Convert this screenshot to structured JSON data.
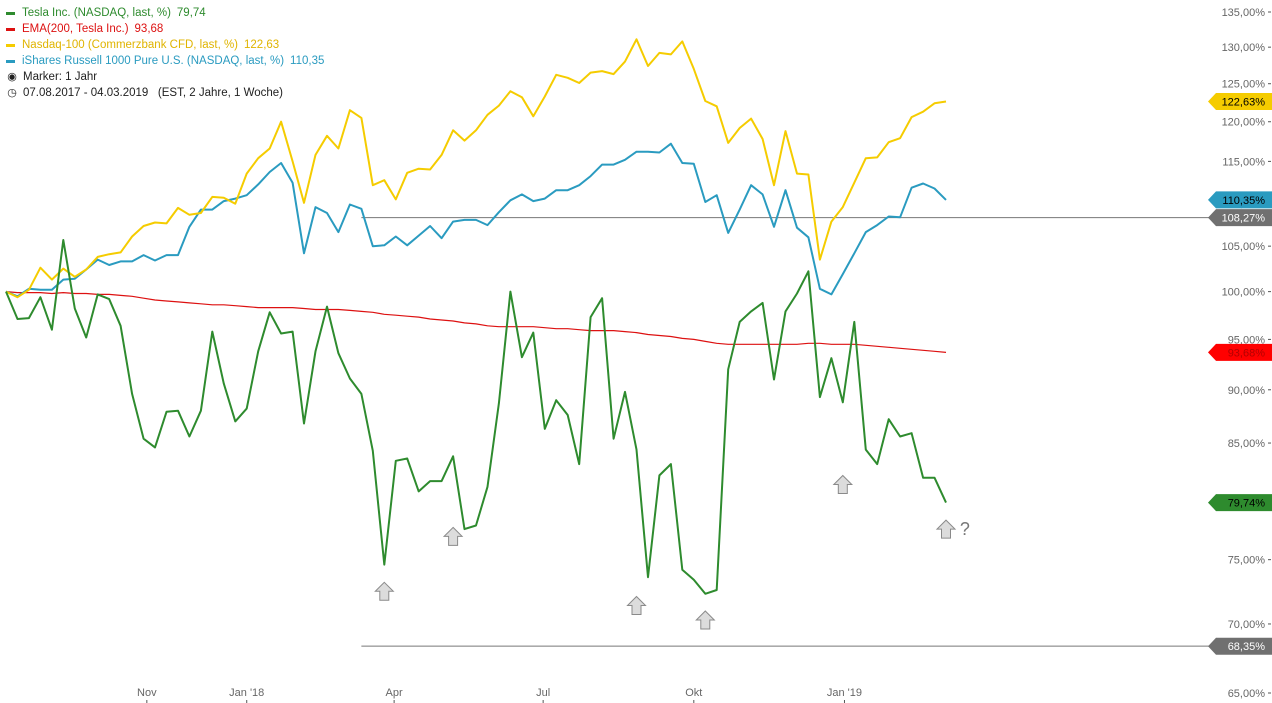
{
  "legend": {
    "items": [
      {
        "label": "Tesla Inc. (NASDAQ, last, %)",
        "value": "79,74",
        "color": "#2e8b2e"
      },
      {
        "label": "EMA(200, Tesla Inc.)",
        "value": "93,68",
        "color": "#dd1111"
      },
      {
        "label": "Nasdaq-100 (Commerzbank CFD, last, %)",
        "value": "122,63",
        "color": "#f5cc00"
      },
      {
        "label": "iShares Russell 1000 Pure U.S. (NASDAQ, last, %)",
        "value": "110,35",
        "color": "#2a9bc0"
      }
    ],
    "marker": "Marker: 1 Jahr",
    "period": "07.08.2017 - 04.03.2019   (EST, 2 Jahre, 1 Woche)"
  },
  "chart_data": {
    "type": "line",
    "x_start": "2017-08-07",
    "x_step_days": 7,
    "xticks": [
      {
        "label": "Nov",
        "date": "2017-11-01"
      },
      {
        "label": "Jan '18",
        "date": "2018-01-01"
      },
      {
        "label": "Apr",
        "date": "2018-04-01"
      },
      {
        "label": "Jul",
        "date": "2018-07-01"
      },
      {
        "label": "Okt",
        "date": "2018-10-01"
      },
      {
        "label": "Jan '19",
        "date": "2019-01-01"
      }
    ],
    "yticks": [
      {
        "label": "135,00%",
        "value": 135
      },
      {
        "label": "130,00%",
        "value": 130
      },
      {
        "label": "125,00%",
        "value": 125
      },
      {
        "label": "120,00%",
        "value": 120
      },
      {
        "label": "115,00%",
        "value": 115
      },
      {
        "label": "110,00%",
        "value": 110
      },
      {
        "label": "105,00%",
        "value": 105
      },
      {
        "label": "100,00%",
        "value": 100
      },
      {
        "label": "95,00%",
        "value": 95
      },
      {
        "label": "90,00%",
        "value": 90
      },
      {
        "label": "85,00%",
        "value": 85
      },
      {
        "label": "75,00%",
        "value": 75
      },
      {
        "label": "70,00%",
        "value": 70
      },
      {
        "label": "65,00%",
        "value": 65
      }
    ],
    "ylim": [
      65,
      135
    ],
    "yscale": "log",
    "grid": false,
    "series": [
      {
        "name": "Tesla Inc. (NASDAQ, last, %)",
        "color": "#2e8b2e",
        "values": [
          100,
          97.1,
          97.2,
          99.4,
          96,
          105.7,
          98.2,
          95.2,
          99.7,
          99.2,
          96.4,
          89.6,
          85.4,
          84.6,
          87.9,
          88,
          85.6,
          88,
          95.8,
          90.6,
          87,
          88.2,
          93.8,
          97.8,
          95.6,
          95.8,
          86.8,
          93.8,
          98.4,
          93.6,
          91.1,
          89.6,
          84.3,
          74.6,
          83.4,
          83.6,
          80.7,
          81.6,
          81.6,
          83.8,
          77.5,
          77.8,
          81.1,
          88.7,
          100,
          93.2,
          95.7,
          86.3,
          89,
          87.6,
          83.1,
          97.3,
          99.3,
          85.4,
          89.8,
          84.4,
          73.6,
          82.1,
          83.1,
          74.2,
          73.4,
          72.3,
          72.6,
          92,
          96.8,
          97.9,
          98.8,
          91,
          97.9,
          99.8,
          102.2,
          89.3,
          93.1,
          88.8,
          96.8,
          84.4,
          83.1,
          87.2,
          85.6,
          85.9,
          81.9,
          81.9,
          79.74
        ]
      },
      {
        "name": "EMA(200, Tesla Inc.)",
        "color": "#dd1111",
        "values": [
          100,
          99.9,
          99.9,
          99.9,
          99.8,
          99.9,
          99.8,
          99.8,
          99.7,
          99.7,
          99.6,
          99.5,
          99.3,
          99.1,
          99,
          98.9,
          98.8,
          98.7,
          98.6,
          98.6,
          98.5,
          98.4,
          98.3,
          98.3,
          98.3,
          98.3,
          98.2,
          98.1,
          98.1,
          98.1,
          98,
          97.9,
          97.8,
          97.6,
          97.5,
          97.4,
          97.3,
          97.1,
          97,
          96.9,
          96.7,
          96.6,
          96.4,
          96.3,
          96.3,
          96.3,
          96.3,
          96.2,
          96.1,
          96.1,
          96,
          95.9,
          95.9,
          95.9,
          95.8,
          95.7,
          95.5,
          95.4,
          95.3,
          95.1,
          95,
          94.8,
          94.6,
          94.5,
          94.5,
          94.5,
          94.5,
          94.5,
          94.5,
          94.5,
          94.6,
          94.6,
          94.5,
          94.5,
          94.5,
          94.4,
          94.3,
          94.2,
          94.1,
          94,
          93.9,
          93.8,
          93.68
        ]
      },
      {
        "name": "Nasdaq-100 (Commerzbank CFD, last, %)",
        "color": "#f5cc00",
        "values": [
          100,
          99.4,
          100.2,
          102.6,
          101.3,
          102.5,
          101.6,
          102.4,
          103.8,
          104.1,
          104.3,
          106.1,
          107.3,
          107.7,
          107.6,
          109.4,
          108.6,
          108.8,
          110.7,
          110.6,
          109.9,
          113.5,
          115.4,
          116.6,
          120,
          115,
          110,
          115.8,
          118.2,
          116.6,
          121.5,
          120.5,
          112.1,
          112.7,
          110.4,
          113.6,
          114.1,
          114,
          115.8,
          118.9,
          117.6,
          118.9,
          120.9,
          122.1,
          124,
          123.2,
          120.7,
          123.3,
          126.2,
          125.8,
          125.1,
          126.5,
          126.7,
          126.3,
          128,
          131.1,
          127.4,
          129.2,
          129,
          130.8,
          127,
          122.7,
          122,
          117.3,
          119.2,
          120.4,
          117.8,
          112.1,
          118.8,
          113.5,
          113.4,
          103.5,
          107.8,
          109.5,
          112.4,
          115.4,
          115.5,
          117.4,
          117.9,
          120.6,
          121.3,
          122.4,
          122.63
        ]
      },
      {
        "name": "iShares Russell 1000 Pure U.S. (NASDAQ, last, %)",
        "color": "#2a9bc0",
        "values": [
          100,
          99.5,
          100.3,
          100.2,
          100.2,
          101.3,
          101.4,
          102.4,
          103.5,
          102.9,
          103.3,
          103.3,
          104,
          103.4,
          104,
          104,
          107.2,
          109.2,
          109.2,
          110.2,
          110.5,
          110.9,
          112.2,
          113.7,
          114.8,
          112.4,
          104.2,
          109.5,
          108.8,
          106.6,
          109.8,
          109.3,
          105,
          105.1,
          106.1,
          105.1,
          106.2,
          107.3,
          105.9,
          107.8,
          108,
          108,
          107.4,
          108.9,
          110.3,
          111,
          110.2,
          110.5,
          111.5,
          111.5,
          112.1,
          113.2,
          114.6,
          114.6,
          115.2,
          116.2,
          116.2,
          116.1,
          117.2,
          114.8,
          114.7,
          110.1,
          110.9,
          106.5,
          109.2,
          112.1,
          111,
          107.2,
          111.5,
          107.1,
          106,
          100.3,
          99.7,
          101.9,
          104.2,
          106.6,
          107.4,
          108.4,
          108.3,
          111.8,
          112.3,
          111.7,
          110.35
        ]
      }
    ],
    "reference_lines": [
      {
        "value": 108.27,
        "label": "108,27%",
        "from_date": "2018-03-12"
      },
      {
        "value": 68.35,
        "label": "68,35%",
        "from_date": "2018-03-12"
      }
    ],
    "value_badges": [
      {
        "value": 122.63,
        "label": "122,63%",
        "bg": "#f5cc00",
        "fg": "#000000"
      },
      {
        "value": 110.35,
        "label": "110,35%",
        "bg": "#2a9bc0",
        "fg": "#000000"
      },
      {
        "value": 108.27,
        "label": "108,27%",
        "bg": "#707070",
        "fg": "#ffffff"
      },
      {
        "value": 93.68,
        "label": "93,68%",
        "bg": "#ff0000",
        "fg": "#b30000"
      },
      {
        "value": 79.74,
        "label": "79,74%",
        "bg": "#2e8b2e",
        "fg": "#000000"
      },
      {
        "value": 68.35,
        "label": "68,35%",
        "bg": "#707070",
        "fg": "#ffffff"
      }
    ],
    "markers": [
      {
        "date": "2018-03-26",
        "value": 72.5
      },
      {
        "date": "2018-05-07",
        "value": 76.9
      },
      {
        "date": "2018-08-27",
        "value": 71.4
      },
      {
        "date": "2018-10-08",
        "value": 70.3
      },
      {
        "date": "2018-12-31",
        "value": 81.3
      },
      {
        "date": "2019-03-04",
        "value": 77.5
      }
    ],
    "annotation": {
      "text": "?",
      "date": "2019-03-18",
      "value": 77.5
    }
  }
}
